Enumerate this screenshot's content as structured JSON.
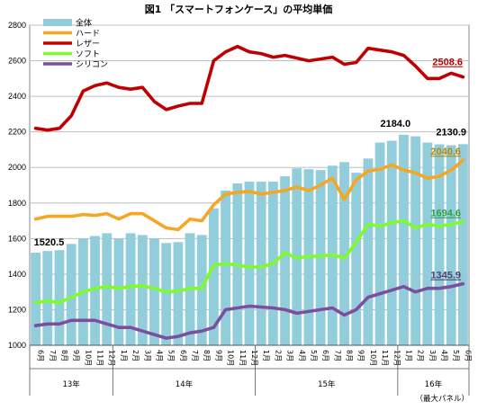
{
  "chart_data": {
    "type": "bar+line",
    "title": "図1 「スマートフォンケース」の平均単価",
    "ylim": [
      1000,
      2800
    ],
    "yticks": [
      1000,
      1200,
      1400,
      1600,
      1800,
      2000,
      2200,
      2400,
      2600,
      2800
    ],
    "grid": true,
    "legend_position": "top-left",
    "categories": [
      "6月",
      "7月",
      "8月",
      "9月",
      "10月",
      "11月",
      "12月",
      "1月",
      "2月",
      "3月",
      "4月",
      "5月",
      "6月",
      "7月",
      "8月",
      "9月",
      "10月",
      "11月",
      "12月",
      "1月",
      "2月",
      "3月",
      "4月",
      "5月",
      "6月",
      "7月",
      "8月",
      "9月",
      "10月",
      "11月",
      "12月",
      "1月",
      "2月",
      "3月",
      "4月",
      "5月",
      "6月"
    ],
    "years": [
      {
        "label": "13年",
        "start": 0,
        "end": 6
      },
      {
        "label": "14年",
        "start": 7,
        "end": 18
      },
      {
        "label": "15年",
        "start": 19,
        "end": 30
      },
      {
        "label": "16年",
        "start": 31,
        "end": 36
      }
    ],
    "note": "（最大パネル）",
    "series": [
      {
        "name": "全体",
        "type": "bar",
        "color": "#92CDDC",
        "values": [
          1520.5,
          1530,
          1535,
          1570,
          1600,
          1615,
          1630,
          1600,
          1630,
          1620,
          1600,
          1575,
          1580,
          1630,
          1620,
          1770,
          1870,
          1910,
          1920,
          1920,
          1920,
          1950,
          1995,
          1990,
          1985,
          2010,
          2030,
          1970,
          2050,
          2140,
          2150,
          2184.0,
          2175,
          2140,
          2130,
          2125,
          2130.9
        ],
        "labels": [
          {
            "index": 0,
            "text": "1520.5"
          },
          {
            "index": 31,
            "text": "2184.0"
          },
          {
            "index": 36,
            "text": "2130.9"
          }
        ]
      },
      {
        "name": "ハード",
        "type": "line",
        "color": "#F5A623",
        "values": [
          1710,
          1725,
          1725,
          1725,
          1735,
          1730,
          1740,
          1710,
          1740,
          1740,
          1700,
          1660,
          1650,
          1710,
          1700,
          1790,
          1850,
          1860,
          1865,
          1850,
          1860,
          1870,
          1890,
          1870,
          1900,
          1940,
          1820,
          1930,
          1980,
          1990,
          2015,
          1985,
          1970,
          1940,
          1950,
          1985,
          2040.6
        ],
        "labels": [
          {
            "index": 36,
            "text": "2040.6"
          }
        ]
      },
      {
        "name": "レザー",
        "type": "line",
        "color": "#C00000",
        "values": [
          2220,
          2210,
          2220,
          2290,
          2430,
          2460,
          2475,
          2450,
          2440,
          2450,
          2370,
          2325,
          2345,
          2360,
          2360,
          2600,
          2650,
          2680,
          2650,
          2640,
          2620,
          2630,
          2615,
          2600,
          2610,
          2620,
          2580,
          2590,
          2670,
          2660,
          2650,
          2630,
          2570,
          2500,
          2500,
          2530,
          2508.6
        ],
        "labels": [
          {
            "index": 36,
            "text": "2508.6"
          }
        ]
      },
      {
        "name": "ソフト",
        "type": "line",
        "color": "#7CFC2A",
        "values": [
          1240,
          1250,
          1240,
          1270,
          1300,
          1320,
          1330,
          1320,
          1330,
          1335,
          1320,
          1300,
          1305,
          1320,
          1320,
          1450,
          1460,
          1450,
          1440,
          1440,
          1460,
          1520,
          1490,
          1500,
          1500,
          1510,
          1490,
          1580,
          1680,
          1670,
          1690,
          1700,
          1660,
          1680,
          1670,
          1680,
          1694.6
        ],
        "labels": [
          {
            "index": 36,
            "text": "1694.6"
          }
        ]
      },
      {
        "name": "シリコン",
        "type": "line",
        "color": "#7B4F9E",
        "values": [
          1110,
          1120,
          1120,
          1140,
          1140,
          1140,
          1120,
          1100,
          1100,
          1080,
          1060,
          1040,
          1050,
          1070,
          1080,
          1100,
          1200,
          1210,
          1220,
          1215,
          1210,
          1200,
          1180,
          1190,
          1200,
          1210,
          1170,
          1200,
          1270,
          1290,
          1310,
          1330,
          1300,
          1320,
          1320,
          1330,
          1345.9
        ],
        "labels": [
          {
            "index": 36,
            "text": "1345.9"
          }
        ]
      }
    ]
  }
}
